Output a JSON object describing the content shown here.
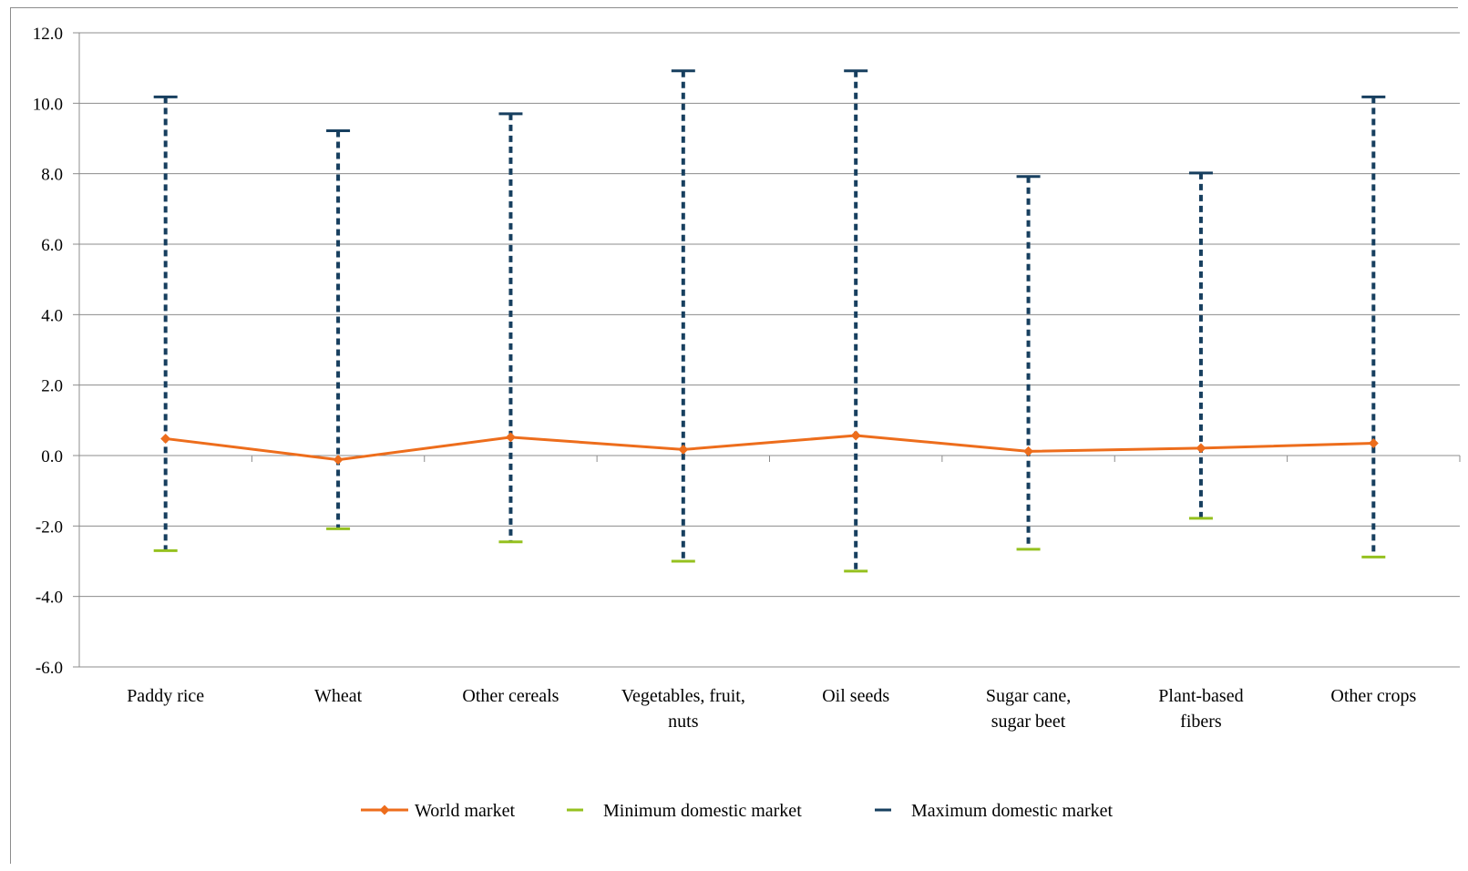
{
  "chart_data": {
    "type": "line",
    "title": "",
    "xlabel": "",
    "ylabel": "",
    "ylim": [
      -6.0,
      12.0
    ],
    "yticks": [
      "-6.0",
      "-4.0",
      "-2.0",
      "0.0",
      "2.0",
      "4.0",
      "6.0",
      "8.0",
      "10.0",
      "12.0"
    ],
    "grid": true,
    "legend_position": "bottom",
    "categories": [
      [
        "Paddy rice"
      ],
      [
        "Wheat"
      ],
      [
        "Other cereals"
      ],
      [
        "Vegetables, fruit,",
        "nuts"
      ],
      [
        "Oil seeds"
      ],
      [
        "Sugar cane,",
        "sugar beet"
      ],
      [
        "Plant-based",
        "fibers"
      ],
      [
        "Other crops"
      ]
    ],
    "series": [
      {
        "name": "World market",
        "color": "#ed6d1c",
        "marker": "diamond",
        "values": [
          0.48,
          -0.12,
          0.52,
          0.17,
          0.57,
          0.12,
          0.21,
          0.35
        ]
      },
      {
        "name": "Minimum domestic market",
        "color": "#95c11f",
        "marker": "dash",
        "values": [
          -2.7,
          -2.08,
          -2.45,
          -3.0,
          -3.28,
          -2.66,
          -1.78,
          -2.88
        ]
      },
      {
        "name": "Maximum domestic market",
        "color": "#173f5f",
        "marker": "dash",
        "values": [
          10.18,
          9.22,
          9.7,
          10.92,
          10.92,
          7.92,
          8.02,
          10.18
        ]
      }
    ]
  }
}
